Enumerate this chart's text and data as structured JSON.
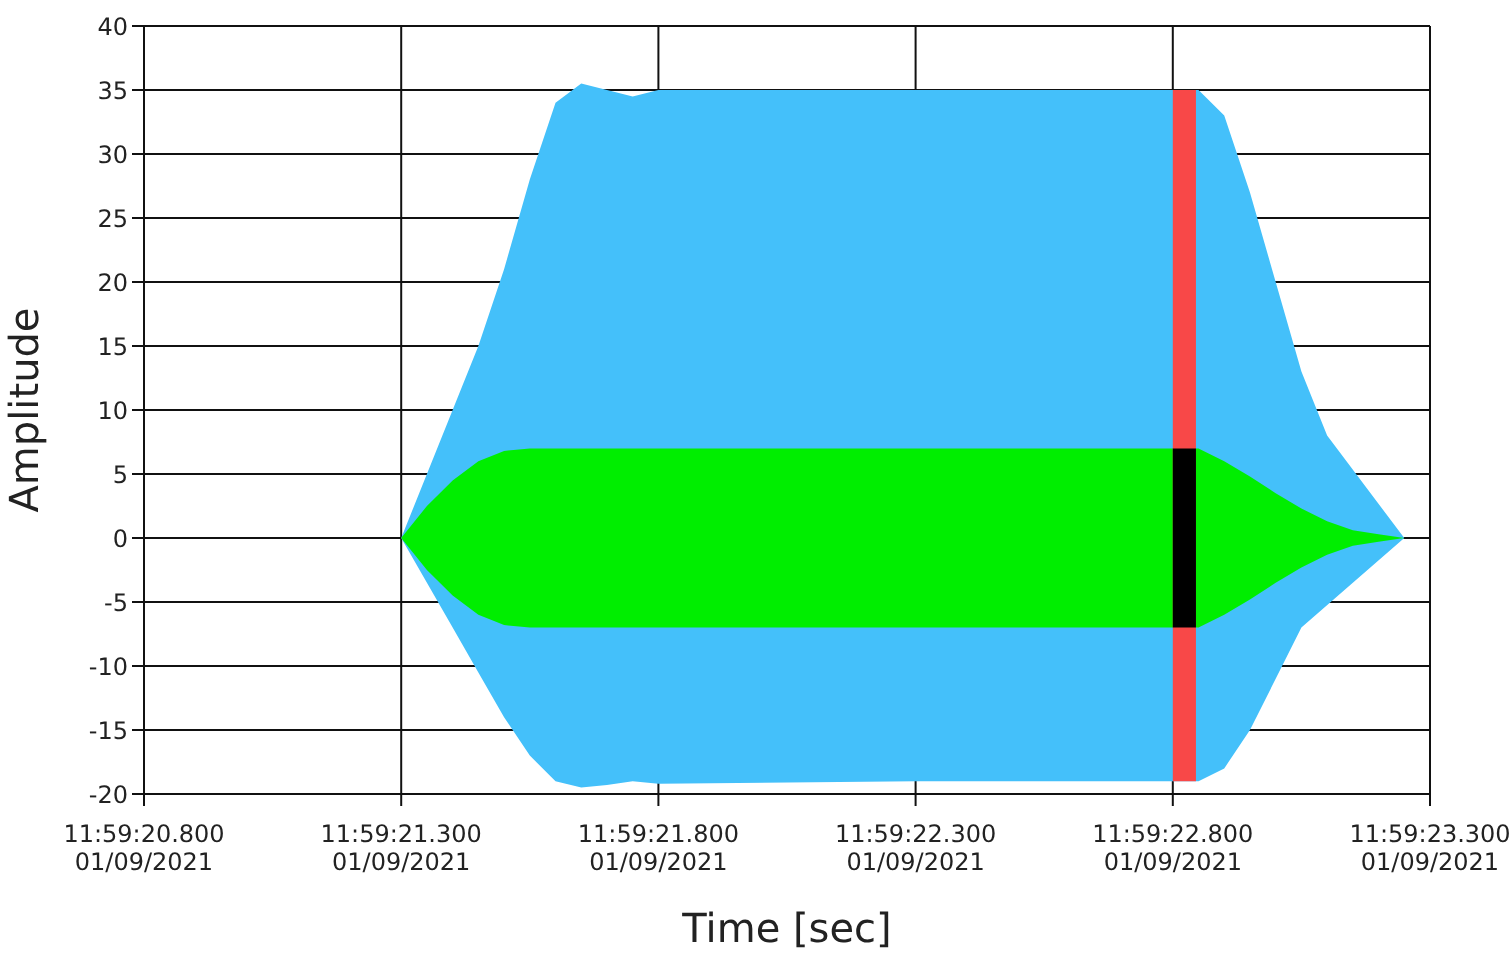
{
  "chart_data": {
    "type": "area",
    "xlabel": "Time [sec]",
    "ylabel": "Amplitude",
    "x": [
      "2021-09-01T11:59:21.300",
      "2021-09-01T11:59:21.350",
      "2021-09-01T11:59:21.400",
      "2021-09-01T11:59:21.450",
      "2021-09-01T11:59:21.500",
      "2021-09-01T11:59:21.550",
      "2021-09-01T11:59:21.600",
      "2021-09-01T11:59:21.650",
      "2021-09-01T11:59:21.700",
      "2021-09-01T11:59:21.750",
      "2021-09-01T11:59:21.800",
      "2021-09-01T11:59:22.300",
      "2021-09-01T11:59:22.850",
      "2021-09-01T11:59:22.900",
      "2021-09-01T11:59:22.950",
      "2021-09-01T11:59:23.000",
      "2021-09-01T11:59:23.050",
      "2021-09-01T11:59:23.100",
      "2021-09-01T11:59:23.150",
      "2021-09-01T11:59:23.200",
      "2021-09-01T11:59:23.250"
    ],
    "series": [
      {
        "color": "#44c0fa",
        "values": [
          0,
          null,
          10,
          15,
          21,
          28,
          34,
          35.5,
          35,
          34.5,
          35,
          35,
          35,
          33,
          27,
          20,
          13,
          8,
          null,
          null,
          0
        ]
      },
      {
        "color": "#44c0fa",
        "values": [
          0,
          null,
          -7,
          -10.5,
          -14,
          -17,
          -19,
          -19.5,
          -19.3,
          -19,
          -19.2,
          -19,
          -19,
          -18,
          -15,
          -11,
          -7,
          null,
          null,
          null,
          0
        ]
      },
      {
        "color": "#00ee00",
        "values": [
          0,
          2.5,
          4.5,
          6,
          6.8,
          7,
          7,
          7,
          7,
          7,
          7,
          7,
          7,
          6,
          4.8,
          3.5,
          2.3,
          1.3,
          0.6,
          0.3,
          0
        ]
      },
      {
        "color": "#00ee00",
        "values": [
          0,
          -2.5,
          -4.5,
          -6,
          -6.8,
          -7,
          -7,
          -7,
          -7,
          -7,
          -7,
          -7,
          -7,
          -6,
          -4.8,
          -3.5,
          -2.3,
          -1.3,
          -0.6,
          -0.3,
          0
        ]
      },
      {
        "color": "#f84848",
        "x": [
          "2021-09-01T11:59:22.800",
          "2021-09-01T11:59:22.845"
        ],
        "values": [
          35,
          35
        ]
      },
      {
        "color": "#f84848",
        "x": [
          "2021-09-01T11:59:22.800",
          "2021-09-01T11:59:22.845"
        ],
        "values": [
          -19,
          -19
        ]
      },
      {
        "color": "#000000",
        "x": [
          "2021-09-01T11:59:22.800",
          "2021-09-01T11:59:22.845"
        ],
        "values": [
          7,
          7
        ]
      },
      {
        "color": "#000000",
        "x": [
          "2021-09-01T11:59:22.800",
          "2021-09-01T11:59:22.845"
        ],
        "values": [
          -7,
          -7
        ]
      }
    ],
    "xlim": [
      "2021-09-01T11:59:20.800",
      "2021-09-01T11:59:23.300"
    ],
    "xticks": [
      {
        "value": "2021-09-01T11:59:20.800",
        "label": "11:59:20.800\n01/09/2021"
      },
      {
        "value": "2021-09-01T11:59:21.300",
        "label": "11:59:21.300\n01/09/2021"
      },
      {
        "value": "2021-09-01T11:59:21.800",
        "label": "11:59:21.800\n01/09/2021"
      },
      {
        "value": "2021-09-01T11:59:22.300",
        "label": "11:59:22.300\n01/09/2021"
      },
      {
        "value": "2021-09-01T11:59:22.800",
        "label": "11:59:22.800\n01/09/2021"
      },
      {
        "value": "2021-09-01T11:59:23.300",
        "label": "11:59:23.300\n01/09/2021"
      }
    ],
    "ylim": [
      -20,
      40
    ],
    "yticks": [
      -20,
      -15,
      -10,
      -5,
      0,
      5,
      10,
      15,
      20,
      25,
      30,
      35,
      40
    ],
    "grid": true
  }
}
